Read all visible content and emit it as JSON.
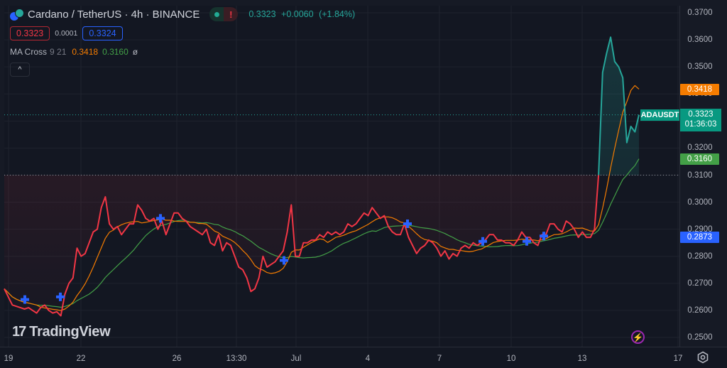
{
  "header": {
    "symbol_title": "Cardano / TetherUS · 4h · BINANCE",
    "market_status": {
      "open_icon": "green-dot",
      "alert_icon": "!"
    },
    "last_price": "0.3323",
    "change": "+0.0060",
    "change_pct": "(+1.84%)"
  },
  "bid_ask": {
    "bid": "0.3323",
    "spread": "0.0001",
    "ask": "0.3324"
  },
  "indicator": {
    "name": "MA Cross",
    "params": "9 21",
    "fast_value": "0.3418",
    "slow_value": "0.3160",
    "extra": "ø"
  },
  "collapse_label": "^",
  "price_axis": {
    "ticks": [
      "0.3700",
      "0.3600",
      "0.3500",
      "0.3400",
      "0.3300",
      "0.3200",
      "0.3100",
      "0.3000",
      "0.2900",
      "0.2800",
      "0.2700",
      "0.2600",
      "0.2500"
    ],
    "labels": {
      "fast_ma": "0.3418",
      "symbol_tag": "ADAUSDT",
      "last_price": "0.3323",
      "countdown": "01:36:03",
      "slow_ma": "0.3160",
      "crosshair": "0.2873"
    }
  },
  "time_axis": {
    "ticks": [
      "19",
      "22",
      "26",
      "13:30",
      "Jul",
      "4",
      "7",
      "10",
      "13",
      "17"
    ]
  },
  "branding": {
    "logo_mark": "17",
    "logo_text": "TradingView"
  },
  "colors": {
    "up": "#26a69a",
    "down": "#f23645",
    "fast_ma": "#f57c00",
    "slow_ma": "#43a047",
    "cross_marker": "#2962ff",
    "background": "#131722"
  },
  "chart_data": {
    "type": "line",
    "title": "Cardano / TetherUS · 4h · BINANCE",
    "style": "baseline",
    "baseline": 0.31,
    "ylim": [
      0.25,
      0.37
    ],
    "grid": true,
    "x_tick_labels": [
      "19",
      "22",
      "26",
      "13:30",
      "Jul",
      "4",
      "7",
      "10",
      "13",
      "17"
    ],
    "series": [
      {
        "name": "ADAUSDT",
        "color_above": "#26a69a",
        "color_below": "#f23645",
        "values": [
          0.268,
          0.265,
          0.262,
          0.2615,
          0.261,
          0.2605,
          0.261,
          0.26,
          0.259,
          0.261,
          0.262,
          0.26,
          0.259,
          0.2595,
          0.258,
          0.266,
          0.27,
          0.272,
          0.283,
          0.28,
          0.281,
          0.285,
          0.289,
          0.29,
          0.298,
          0.302,
          0.292,
          0.29,
          0.291,
          0.288,
          0.29,
          0.292,
          0.292,
          0.299,
          0.297,
          0.294,
          0.293,
          0.294,
          0.29,
          0.293,
          0.288,
          0.292,
          0.296,
          0.296,
          0.294,
          0.293,
          0.291,
          0.29,
          0.289,
          0.288,
          0.29,
          0.285,
          0.284,
          0.288,
          0.282,
          0.285,
          0.284,
          0.28,
          0.276,
          0.275,
          0.272,
          0.267,
          0.268,
          0.272,
          0.28,
          0.276,
          0.277,
          0.278,
          0.28,
          0.282,
          0.289,
          0.299,
          0.28,
          0.28,
          0.285,
          0.285,
          0.286,
          0.286,
          0.288,
          0.287,
          0.289,
          0.288,
          0.289,
          0.288,
          0.289,
          0.292,
          0.291,
          0.292,
          0.294,
          0.296,
          0.295,
          0.298,
          0.296,
          0.294,
          0.295,
          0.291,
          0.289,
          0.288,
          0.288,
          0.292,
          0.287,
          0.284,
          0.281,
          0.283,
          0.284,
          0.286,
          0.285,
          0.283,
          0.28,
          0.282,
          0.279,
          0.281,
          0.28,
          0.283,
          0.284,
          0.283,
          0.285,
          0.284,
          0.285,
          0.286,
          0.288,
          0.288,
          0.286,
          0.286,
          0.285,
          0.285,
          0.284,
          0.286,
          0.289,
          0.287,
          0.287,
          0.285,
          0.284,
          0.288,
          0.288,
          0.292,
          0.292,
          0.29,
          0.289,
          0.293,
          0.292,
          0.29,
          0.287,
          0.289,
          0.287,
          0.287,
          0.29,
          0.31,
          0.348,
          0.355,
          0.361,
          0.352,
          0.35,
          0.346,
          0.322,
          0.328,
          0.326,
          0.3323
        ]
      },
      {
        "name": "MA 9",
        "color": "#f57c00",
        "last": 0.3418
      },
      {
        "name": "MA 21",
        "color": "#43a047",
        "last": 0.316
      }
    ],
    "cross_markers": [
      {
        "x_label": "~20",
        "price": 0.264
      },
      {
        "x_label": "~21",
        "price": 0.265
      },
      {
        "x_label": "~25",
        "price": 0.294
      },
      {
        "x_label": "~30",
        "price": 0.2785
      },
      {
        "x_label": "~5 Jul",
        "price": 0.292
      },
      {
        "x_label": "~9 Jul",
        "price": 0.2855
      },
      {
        "x_label": "~10 Jul",
        "price": 0.2855
      },
      {
        "x_label": "~11 Jul",
        "price": 0.2875
      }
    ]
  }
}
